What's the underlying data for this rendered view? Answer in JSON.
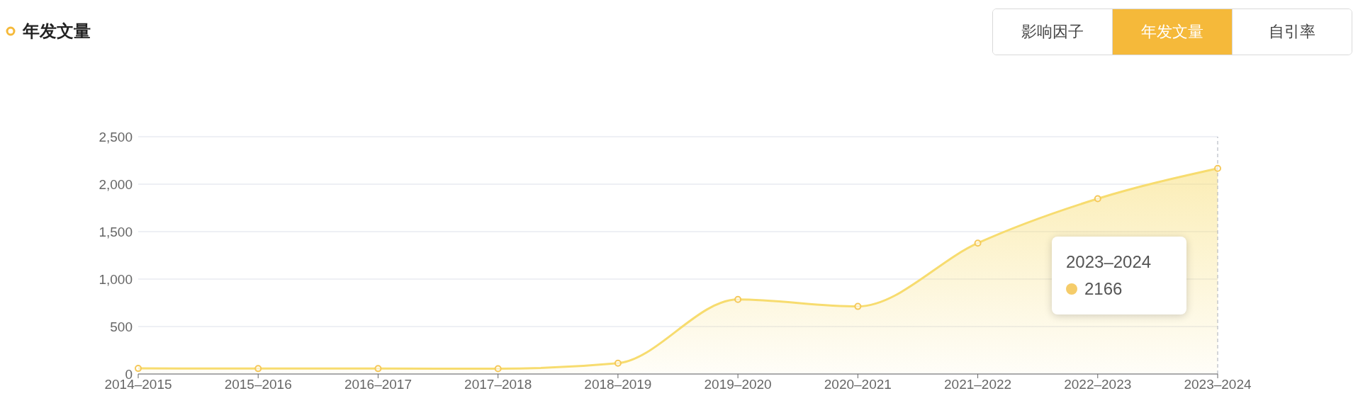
{
  "chart_data": {
    "type": "area",
    "title": "年发文量",
    "categories": [
      "2014–2015",
      "2015–2016",
      "2016–2017",
      "2017–2018",
      "2018–2019",
      "2019–2020",
      "2020–2021",
      "2021–2022",
      "2022–2023",
      "2023–2024"
    ],
    "series": [
      {
        "color": "#f7dc6f",
        "values": [
          59,
          57,
          57,
          56,
          114,
          785,
          712,
          1379,
          1847,
          2166
        ]
      }
    ],
    "ylim": [
      0,
      2500
    ],
    "yticks": [
      0,
      500,
      {
        "value": 1000,
        "label": "1,000"
      },
      {
        "value": 1500,
        "label": "1,500"
      },
      {
        "value": 2000,
        "label": "2,000"
      },
      {
        "value": 2500,
        "label": "2,500"
      }
    ],
    "grid": "y",
    "marker": "circle",
    "line_style": "solid",
    "ref_lines": [
      {
        "axis": "x",
        "value": "2023–2024",
        "color": "#a8adb8",
        "line_style": "dashed"
      }
    ],
    "annotations": [
      "影响因子",
      "年发文量",
      "自引率",
      "2023–2024",
      "2166"
    ]
  }
}
